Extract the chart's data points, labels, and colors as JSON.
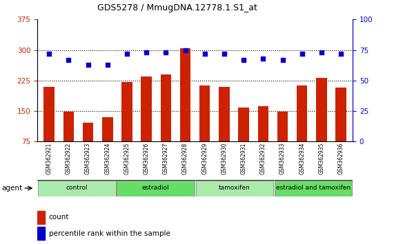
{
  "title": "GDS5278 / MmugDNA.12778.1.S1_at",
  "samples": [
    "GSM362921",
    "GSM362922",
    "GSM362923",
    "GSM362924",
    "GSM362925",
    "GSM362926",
    "GSM362927",
    "GSM362928",
    "GSM362929",
    "GSM362930",
    "GSM362931",
    "GSM362932",
    "GSM362933",
    "GSM362934",
    "GSM362935",
    "GSM362936"
  ],
  "counts": [
    210,
    148,
    122,
    135,
    222,
    235,
    240,
    305,
    213,
    210,
    158,
    162,
    148,
    213,
    232,
    207
  ],
  "percentile_ranks": [
    72,
    67,
    63,
    63,
    72,
    73,
    73,
    75,
    72,
    72,
    67,
    68,
    67,
    72,
    73,
    72
  ],
  "groups": [
    {
      "label": "control",
      "start": 0,
      "end": 4,
      "color": "#aaeaaa"
    },
    {
      "label": "estradiol",
      "start": 4,
      "end": 8,
      "color": "#66dd66"
    },
    {
      "label": "tamoxifen",
      "start": 8,
      "end": 12,
      "color": "#aaeaaa"
    },
    {
      "label": "estradiol and tamoxifen",
      "start": 12,
      "end": 16,
      "color": "#66dd66"
    }
  ],
  "bar_color": "#cc2200",
  "dot_color": "#0000cc",
  "ylim_left": [
    75,
    375
  ],
  "ylim_right": [
    0,
    100
  ],
  "yticks_left": [
    75,
    150,
    225,
    300,
    375
  ],
  "yticks_right": [
    0,
    25,
    50,
    75,
    100
  ],
  "grid_lines": [
    150,
    225,
    300
  ],
  "bg_color": "#ffffff",
  "plot_bg": "#ffffff",
  "bar_width": 0.55,
  "agent_label": "agent",
  "legend_count_label": "count",
  "legend_pct_label": "percentile rank within the sample"
}
